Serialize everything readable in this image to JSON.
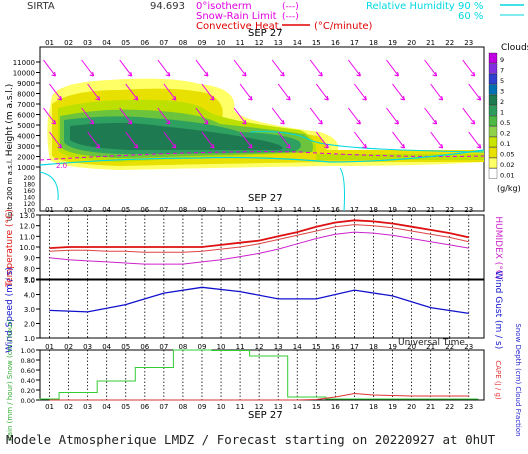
{
  "header": {
    "station": "SIRTA",
    "coord_fragment": "94.693",
    "legend_left": [
      {
        "label": "0°isotherm",
        "unit": "(---)",
        "color": "#e000e0"
      },
      {
        "label": "Snow-Rain Limit",
        "unit": "(---)",
        "color": "#e000e0"
      },
      {
        "label": "Convective Heat.",
        "unit": "(°C/minute)",
        "color": "#e00000"
      }
    ],
    "legend_right": {
      "label": "Relative Humidity",
      "v1": "90 %",
      "v2": "60 %",
      "color": "#00d8e0"
    }
  },
  "footer": {
    "title": "Modele Atmospherique LMDZ / Forecast starting on 20220927 at 0hUT",
    "axis_note": "Universal Time"
  },
  "colors": {
    "cloud_levels": [
      "#ffff66",
      "#e8e000",
      "#bde000",
      "#6cc43c",
      "#2ea060",
      "#1e7a50"
    ],
    "temperature": "#dd1111",
    "humidex": "#cc22cc",
    "wind": "#1111cc",
    "rain": "#33cc33",
    "cape": "#dd3333",
    "rh": "#00d8e0",
    "wind_arrow": "#ee00ee",
    "clouds_legend": [
      "#ffffff",
      "#ffff66",
      "#e8e000",
      "#c8e400",
      "#8fd24a",
      "#4eb845",
      "#2c9c5c",
      "#1e7a50",
      "#0070b0",
      "#3040d0",
      "#8030e0",
      "#c000e0"
    ]
  },
  "chart_data": [
    {
      "type": "heatmap",
      "name": "clouds-height",
      "date_label": "SEP 27",
      "hours": [
        "01",
        "02",
        "03",
        "04",
        "05",
        "06",
        "07",
        "08",
        "09",
        "10",
        "11",
        "12",
        "13",
        "14",
        "15",
        "16",
        "17",
        "18",
        "19",
        "20",
        "21",
        "22",
        "23"
      ],
      "ylabel": "Height (m a.s.l.)",
      "ylabel_low": "Up to 200 m a.s.l.",
      "y_ticks_upper": [
        "1000",
        "2000",
        "3000",
        "4000",
        "5000",
        "6000",
        "7000",
        "8000",
        "9000",
        "10000",
        "11000"
      ],
      "y_ticks_lower": [
        "200",
        "180",
        "160",
        "140",
        "120",
        "100"
      ],
      "legend_title": "Clouds",
      "legend_labels": [
        "9",
        "7",
        "5",
        "3",
        "2",
        "1",
        "0.5",
        "0.2",
        "0.1",
        "0.05",
        "0.02",
        "0.01"
      ],
      "legend_unit": "(g/kg)",
      "isotherm_label": "2.0",
      "wind_arrows": [
        {
          "h": 1,
          "dir": "down-right"
        },
        {
          "h": 24,
          "dir": "down-right"
        }
      ]
    },
    {
      "type": "line",
      "name": "temperature-humidex",
      "date_label": "SEP 27",
      "ylabel": "Temperature (°C)",
      "ylabel_right": "HUMIDEX (°C)",
      "y_ticks": [
        "7.0",
        "8.0",
        "9.0",
        "10.0",
        "11.0",
        "12.0",
        "13.0"
      ],
      "ylim": [
        7,
        13
      ],
      "x": [
        1,
        2,
        3,
        4,
        5,
        6,
        7,
        8,
        9,
        10,
        11,
        12,
        13,
        14,
        15,
        16,
        17,
        18,
        19,
        20,
        21,
        22,
        23
      ],
      "series": [
        {
          "name": "Temperature",
          "values": [
            9.9,
            10.0,
            10.0,
            10.0,
            10.0,
            10.0,
            10.0,
            10.0,
            10.0,
            10.2,
            10.4,
            10.6,
            11.0,
            11.4,
            11.9,
            12.3,
            12.5,
            12.4,
            12.2,
            11.9,
            11.6,
            11.3,
            10.9
          ]
        },
        {
          "name": "Humidex",
          "values": [
            9.0,
            8.8,
            8.7,
            8.6,
            8.5,
            8.4,
            8.4,
            8.4,
            8.6,
            8.8,
            9.1,
            9.4,
            9.8,
            10.3,
            10.8,
            11.2,
            11.4,
            11.3,
            11.1,
            10.8,
            10.5,
            10.2,
            9.9
          ]
        },
        {
          "name": "Temperature-aux",
          "values": [
            9.6,
            9.7,
            9.7,
            9.6,
            9.6,
            9.5,
            9.5,
            9.5,
            9.6,
            9.8,
            10.0,
            10.3,
            10.7,
            11.1,
            11.5,
            11.9,
            12.1,
            12.0,
            11.8,
            11.5,
            11.2,
            10.9,
            10.5
          ]
        }
      ]
    },
    {
      "type": "line",
      "name": "wind",
      "date_label": "",
      "ylabel": "Wind Speed (m / s)",
      "ylabel_right": "Wind Gust (m / s)",
      "y_ticks": [
        "1.0",
        "2.0",
        "3.0",
        "4.0",
        "5.0"
      ],
      "ylim": [
        1,
        5
      ],
      "x": [
        1,
        3,
        5,
        7,
        9,
        11,
        13,
        15,
        17,
        19,
        21,
        23
      ],
      "series": [
        {
          "name": "Wind Speed",
          "values": [
            2.9,
            2.8,
            3.3,
            4.1,
            4.5,
            4.2,
            3.7,
            3.7,
            4.3,
            3.9,
            3.1,
            2.7
          ]
        }
      ]
    },
    {
      "type": "bar",
      "name": "precipitation",
      "date_label": "SEP 27",
      "ylabel": "Rain (mm / hour) Snow (cm / hour)",
      "ylabel_right": "CAPE (J / g)",
      "ylabel_right2": "Snow Depth (cm) Cloud Fraction",
      "y_ticks": [
        "0.00",
        "0.20",
        "0.40",
        "0.60",
        "0.80",
        "1.00"
      ],
      "ylim": [
        0,
        1
      ],
      "x": [
        1,
        2,
        3,
        4,
        5,
        6,
        7,
        8,
        9,
        10,
        11,
        12,
        13,
        14,
        15,
        16,
        17,
        18,
        19,
        20,
        21,
        22,
        23
      ],
      "series": [
        {
          "name": "Rain",
          "values": [
            0.02,
            0.15,
            0.15,
            0.38,
            0.38,
            0.65,
            0.65,
            1.0,
            1.0,
            0.99,
            0.99,
            0.88,
            0.88,
            0.06,
            0.06,
            0.02,
            0.02,
            0.02,
            0.02,
            0.02,
            0.02,
            0.02,
            0.02
          ]
        },
        {
          "name": "CAPE",
          "values": [
            0.0,
            0.0,
            0.0,
            0.0,
            0.0,
            0.0,
            0.0,
            0.0,
            0.0,
            0.0,
            0.0,
            0.0,
            0.0,
            0.0,
            0.01,
            0.06,
            0.13,
            0.1,
            0.09,
            0.08,
            0.08,
            0.08,
            0.08
          ]
        }
      ]
    }
  ]
}
